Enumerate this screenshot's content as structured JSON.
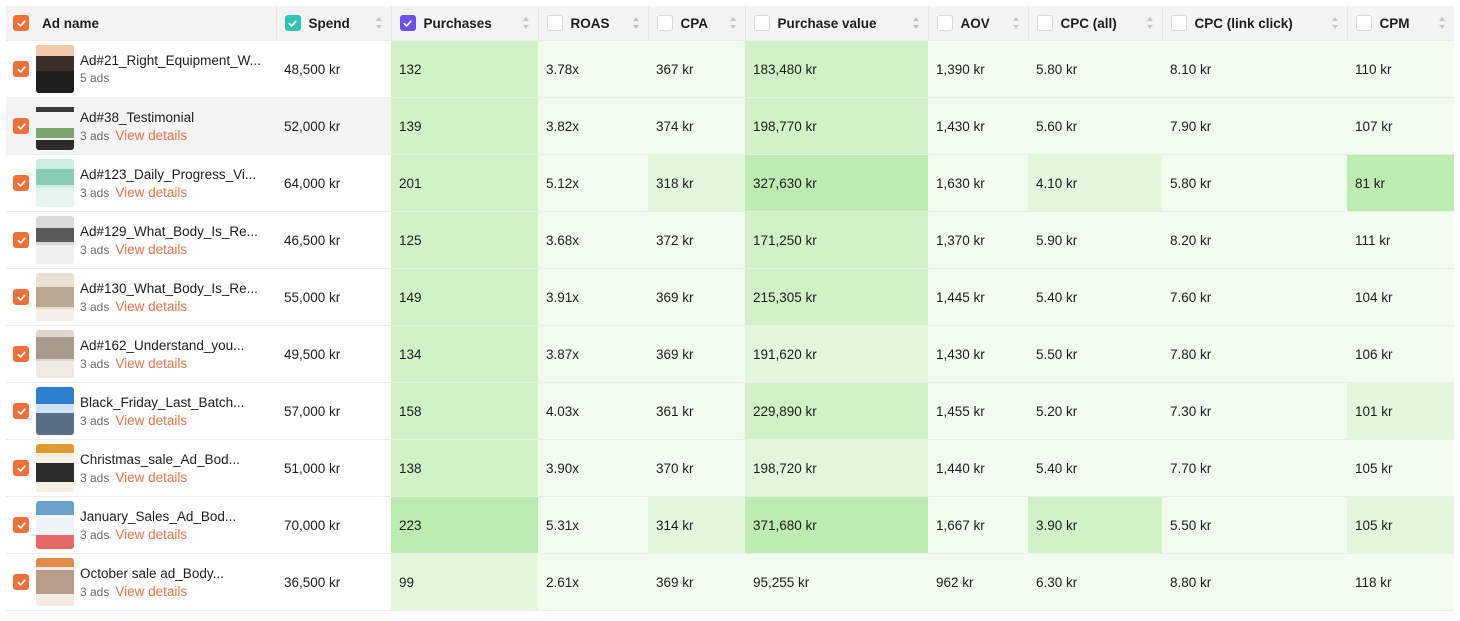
{
  "columns": [
    {
      "label": "Ad name",
      "check": "orange"
    },
    {
      "label": "Spend",
      "check": "teal"
    },
    {
      "label": "Purchases",
      "check": "purple"
    },
    {
      "label": "ROAS",
      "check": "none"
    },
    {
      "label": "CPA",
      "check": "none"
    },
    {
      "label": "Purchase value",
      "check": "none"
    },
    {
      "label": "AOV",
      "check": "none"
    },
    {
      "label": "CPC (all)",
      "check": "none"
    },
    {
      "label": "CPC (link click)",
      "check": "none"
    },
    {
      "label": "CPM",
      "check": "none"
    }
  ],
  "view_details_label": "View details",
  "colors": {
    "accent_orange": "#f0703a",
    "link_orange": "#e8744a",
    "heat_levels": [
      "#ffffff",
      "#f1fbee",
      "#e3f7dc",
      "#d0f2c6",
      "#bdecb0"
    ]
  },
  "rows": [
    {
      "name": "Ad#21_Right_Equipment_W...",
      "sub": "5 ads",
      "has_details": false,
      "thumb": "dark",
      "cells": [
        "48,500 kr",
        "132",
        "3.78x",
        "367 kr",
        "183,480 kr",
        "1,390 kr",
        "5.80 kr",
        "8.10 kr",
        "110 kr"
      ],
      "heat": [
        0,
        3,
        1,
        1,
        3,
        1,
        1,
        1,
        1
      ]
    },
    {
      "name": "Ad#38_Testimonial",
      "sub": "3 ads",
      "has_details": true,
      "thumb": "white",
      "cells": [
        "52,000 kr",
        "139",
        "3.82x",
        "374 kr",
        "198,770 kr",
        "1,430 kr",
        "5.60 kr",
        "7.90 kr",
        "107 kr"
      ],
      "heat": [
        0,
        3,
        1,
        1,
        3,
        1,
        1,
        1,
        1
      ]
    },
    {
      "name": "Ad#123_Daily_Progress_Vi...",
      "sub": "3 ads",
      "has_details": true,
      "thumb": "mint",
      "cells": [
        "64,000 kr",
        "201",
        "5.12x",
        "318 kr",
        "327,630 kr",
        "1,630 kr",
        "4.10 kr",
        "5.80 kr",
        "81 kr"
      ],
      "heat": [
        0,
        3,
        1,
        2,
        4,
        1,
        2,
        1,
        4
      ]
    },
    {
      "name": "Ad#129_What_Body_Is_Re...",
      "sub": "3 ads",
      "has_details": true,
      "thumb": "gray",
      "cells": [
        "46,500 kr",
        "125",
        "3.68x",
        "372 kr",
        "171,250 kr",
        "1,370 kr",
        "5.90 kr",
        "8.20 kr",
        "111 kr"
      ],
      "heat": [
        0,
        3,
        1,
        1,
        3,
        1,
        1,
        1,
        1
      ]
    },
    {
      "name": "Ad#130_What_Body_Is_Re...",
      "sub": "3 ads",
      "has_details": true,
      "thumb": "beige",
      "cells": [
        "55,000 kr",
        "149",
        "3.91x",
        "369 kr",
        "215,305 kr",
        "1,445 kr",
        "5.40 kr",
        "7.60 kr",
        "104 kr"
      ],
      "heat": [
        0,
        3,
        1,
        1,
        3,
        1,
        1,
        1,
        1
      ]
    },
    {
      "name": "Ad#162_Understand_you...",
      "sub": "3 ads",
      "has_details": true,
      "thumb": "room",
      "cells": [
        "49,500 kr",
        "134",
        "3.87x",
        "369 kr",
        "191,620 kr",
        "1,430 kr",
        "5.50 kr",
        "7.80 kr",
        "106 kr"
      ],
      "heat": [
        0,
        3,
        1,
        1,
        2,
        1,
        1,
        1,
        1
      ]
    },
    {
      "name": "Black_Friday_Last_Batch...",
      "sub": "3 ads",
      "has_details": true,
      "thumb": "blue",
      "cells": [
        "57,000 kr",
        "158",
        "4.03x",
        "361 kr",
        "229,890 kr",
        "1,455 kr",
        "5.20 kr",
        "7.30 kr",
        "101 kr"
      ],
      "heat": [
        0,
        3,
        1,
        1,
        3,
        1,
        1,
        1,
        2
      ]
    },
    {
      "name": "Christmas_sale_Ad_Bod...",
      "sub": "3 ads",
      "has_details": true,
      "thumb": "sale",
      "cells": [
        "51,000 kr",
        "138",
        "3.90x",
        "370 kr",
        "198,720 kr",
        "1,440 kr",
        "5.40 kr",
        "7.70 kr",
        "105 kr"
      ],
      "heat": [
        0,
        3,
        1,
        1,
        2,
        1,
        1,
        1,
        1
      ]
    },
    {
      "name": "January_Sales_Ad_Bod...",
      "sub": "3 ads",
      "has_details": true,
      "thumb": "pink",
      "cells": [
        "70,000 kr",
        "223",
        "5.31x",
        "314 kr",
        "371,680 kr",
        "1,667 kr",
        "3.90 kr",
        "5.50 kr",
        "105 kr"
      ],
      "heat": [
        0,
        4,
        1,
        2,
        4,
        1,
        3,
        1,
        2
      ]
    },
    {
      "name": "October sale ad_Body...",
      "sub": "3 ads",
      "has_details": true,
      "thumb": "sale2",
      "cells": [
        "36,500 kr",
        "99",
        "2.61x",
        "369 kr",
        "95,255 kr",
        "962 kr",
        "6.30 kr",
        "8.80 kr",
        "118 kr"
      ],
      "heat": [
        0,
        2,
        1,
        1,
        1,
        1,
        1,
        1,
        1
      ]
    }
  ]
}
